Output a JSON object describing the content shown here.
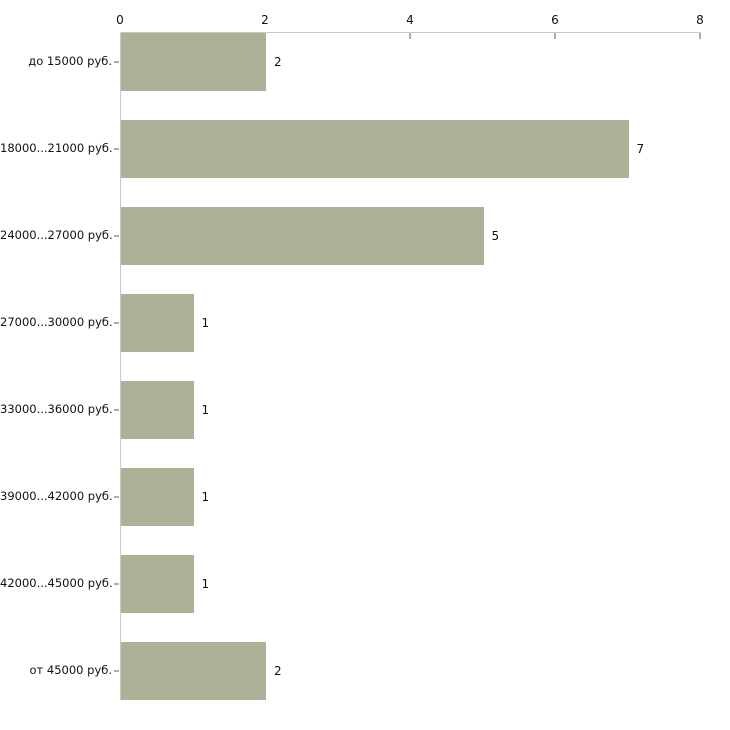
{
  "chart_data": {
    "type": "bar",
    "orientation": "horizontal",
    "title": "",
    "xlabel": "",
    "ylabel": "",
    "categories": [
      "до 15000 руб.",
      "18000...21000 руб.",
      "24000...27000 руб.",
      "27000...30000 руб.",
      "33000...36000 руб.",
      "39000...42000 руб.",
      "42000...45000 руб.",
      "от 45000 руб."
    ],
    "values": [
      2,
      7,
      5,
      1,
      1,
      1,
      1,
      2
    ],
    "value_labels": [
      "2",
      "7",
      "5",
      "1",
      "1",
      "1",
      "1",
      "2"
    ],
    "xlim": [
      0,
      8
    ],
    "x_ticks": [
      0,
      2,
      4,
      6,
      8
    ],
    "x_tick_labels": [
      "0",
      "2",
      "4",
      "6",
      "8"
    ],
    "axis_position": "top",
    "grid": false,
    "legend": false,
    "colors": {
      "bar": "#acb198",
      "axis_line": "#c9c9c9",
      "tick_mark": "#b1b28d",
      "text": "#111111",
      "background": "#ffffff"
    }
  }
}
